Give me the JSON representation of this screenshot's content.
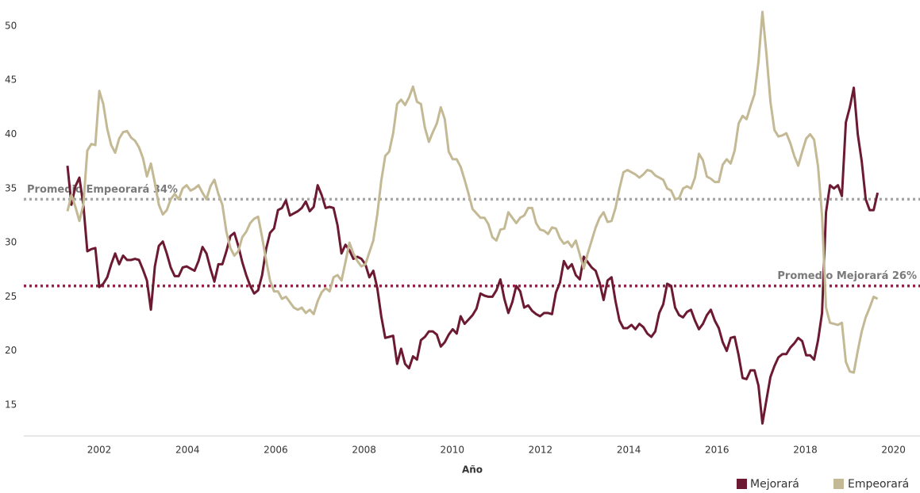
{
  "chart_data": {
    "type": "line",
    "x_label": "Año",
    "x": [
      2001.28,
      2001.37,
      2001.46,
      2001.55,
      2001.64,
      2001.73,
      2001.82,
      2001.91,
      2002.0,
      2002.09,
      2002.18,
      2002.27,
      2002.36,
      2002.45,
      2002.54,
      2002.63,
      2002.72,
      2002.81,
      2002.9,
      2002.99,
      2003.08,
      2003.17,
      2003.26,
      2003.35,
      2003.44,
      2003.53,
      2003.62,
      2003.71,
      2003.8,
      2003.89,
      2003.98,
      2004.07,
      2004.16,
      2004.25,
      2004.34,
      2004.43,
      2004.52,
      2004.61,
      2004.7,
      2004.79,
      2004.88,
      2004.97,
      2005.06,
      2005.15,
      2005.24,
      2005.33,
      2005.42,
      2005.51,
      2005.6,
      2005.69,
      2005.78,
      2005.87,
      2005.96,
      2006.05,
      2006.14,
      2006.23,
      2006.32,
      2006.41,
      2006.5,
      2006.59,
      2006.68,
      2006.77,
      2006.86,
      2006.95,
      2007.04,
      2007.13,
      2007.22,
      2007.31,
      2007.4,
      2007.49,
      2007.58,
      2007.67,
      2007.76,
      2007.85,
      2007.94,
      2008.03,
      2008.12,
      2008.21,
      2008.3,
      2008.39,
      2008.48,
      2008.57,
      2008.66,
      2008.75,
      2008.84,
      2008.93,
      2009.02,
      2009.11,
      2009.2,
      2009.29,
      2009.38,
      2009.47,
      2009.56,
      2009.65,
      2009.74,
      2009.83,
      2009.92,
      2010.01,
      2010.1,
      2010.19,
      2010.28,
      2010.37,
      2010.46,
      2010.55,
      2010.64,
      2010.73,
      2010.82,
      2010.91,
      2011.0,
      2011.09,
      2011.18,
      2011.27,
      2011.36,
      2011.45,
      2011.54,
      2011.63,
      2011.72,
      2011.81,
      2011.9,
      2011.99,
      2012.08,
      2012.17,
      2012.26,
      2012.35,
      2012.44,
      2012.53,
      2012.62,
      2012.71,
      2012.8,
      2012.89,
      2012.98,
      2013.07,
      2013.16,
      2013.25,
      2013.34,
      2013.43,
      2013.52,
      2013.61,
      2013.7,
      2013.79,
      2013.88,
      2013.97,
      2014.06,
      2014.15,
      2014.24,
      2014.33,
      2014.42,
      2014.51,
      2014.6,
      2014.69,
      2014.78,
      2014.87,
      2014.96,
      2015.05,
      2015.14,
      2015.23,
      2015.32,
      2015.41,
      2015.5,
      2015.59,
      2015.68,
      2015.77,
      2015.86,
      2015.95,
      2016.04,
      2016.13,
      2016.22,
      2016.31,
      2016.4,
      2016.49,
      2016.58,
      2016.67,
      2016.76,
      2016.85,
      2016.94,
      2017.03,
      2017.12,
      2017.21,
      2017.3,
      2017.39,
      2017.48,
      2017.57,
      2017.66,
      2017.75,
      2017.84,
      2017.93,
      2018.02,
      2018.11,
      2018.2,
      2018.29,
      2018.38,
      2018.47,
      2018.56,
      2018.65,
      2018.74,
      2018.83,
      2018.92,
      2019.01,
      2019.1,
      2019.19,
      2019.28,
      2019.37,
      2019.46,
      2019.55,
      2019.64
    ],
    "series": [
      {
        "name": "Mejorará",
        "color": "#6b1a32",
        "values": [
          37.1,
          33.5,
          35.2,
          36,
          33.5,
          29.2,
          29.4,
          29.5,
          25.9,
          26.2,
          26.8,
          28,
          29,
          28,
          28.8,
          28.4,
          28.4,
          28.5,
          28.4,
          27.5,
          26.5,
          23.8,
          27.8,
          29.7,
          30.1,
          29,
          27.7,
          26.9,
          26.9,
          27.7,
          27.8,
          27.6,
          27.4,
          28.3,
          29.6,
          29,
          27.6,
          26.4,
          28,
          28,
          29.2,
          30.6,
          30.9,
          29.7,
          28.2,
          27,
          26,
          25.3,
          25.6,
          27,
          29.4,
          30.9,
          31.3,
          33,
          33.2,
          33.9,
          32.5,
          32.7,
          32.9,
          33.2,
          33.8,
          32.9,
          33.3,
          35.3,
          34.4,
          33.2,
          33.3,
          33.2,
          31.6,
          29,
          29.8,
          29.3,
          28.5,
          28.7,
          28.5,
          28,
          26.8,
          27.4,
          25.8,
          23.2,
          21.2,
          21.3,
          21.4,
          18.8,
          20.2,
          18.8,
          18.4,
          19.5,
          19.2,
          21,
          21.3,
          21.8,
          21.8,
          21.5,
          20.4,
          20.8,
          21.5,
          22,
          21.6,
          23.2,
          22.5,
          22.9,
          23.3,
          23.9,
          25.3,
          25.1,
          25,
          25,
          25.6,
          26.6,
          24.8,
          23.5,
          24.5,
          26,
          25.5,
          24,
          24.2,
          23.7,
          23.4,
          23.2,
          23.5,
          23.5,
          23.4,
          25.4,
          26.3,
          28.3,
          27.6,
          28,
          27,
          26.6,
          28.7,
          28.2,
          27.7,
          27.4,
          26.3,
          24.7,
          26.5,
          26.8,
          24.6,
          22.8,
          22.1,
          22.1,
          22.4,
          22,
          22.5,
          22.2,
          21.6,
          21.3,
          21.8,
          23.5,
          24.3,
          26.2,
          26,
          24,
          23.3,
          23.1,
          23.6,
          23.8,
          22.8,
          22,
          22.5,
          23.3,
          23.8,
          22.8,
          22.1,
          20.8,
          20,
          21.2,
          21.3,
          19.6,
          17.5,
          17.4,
          18.2,
          18.2,
          16.8,
          13.3,
          15.5,
          17.6,
          18.6,
          19.4,
          19.7,
          19.7,
          20.3,
          20.7,
          21.2,
          20.9,
          19.6,
          19.6,
          19.2,
          21,
          23.5,
          32.8,
          35.3,
          35,
          35.3,
          34.3,
          41.1,
          42.5,
          44.3,
          40,
          37.5,
          34,
          33,
          33,
          34.6
        ]
      },
      {
        "name": "Empeorará",
        "color": "#c4b995",
        "values": [
          32.9,
          34.4,
          33.3,
          32,
          33.5,
          38.5,
          39.1,
          39,
          44,
          42.8,
          40.5,
          39,
          38.3,
          39.6,
          40.2,
          40.3,
          39.7,
          39.4,
          38.8,
          37.8,
          36.1,
          37.3,
          35.5,
          33.5,
          32.6,
          33,
          34,
          34.5,
          34,
          35,
          35.3,
          34.8,
          35,
          35.3,
          34.6,
          34,
          35.2,
          35.8,
          34.5,
          33.5,
          31,
          29.5,
          28.8,
          29.2,
          30.5,
          31,
          31.8,
          32.2,
          32.4,
          30.5,
          28.4,
          26.5,
          25.5,
          25.5,
          24.8,
          25,
          24.5,
          24,
          23.8,
          24,
          23.5,
          23.8,
          23.4,
          24.6,
          25.4,
          25.8,
          25.5,
          26.8,
          27,
          26.5,
          28.2,
          30,
          29,
          28.3,
          27.8,
          28,
          29.1,
          30.2,
          32.6,
          35.7,
          38,
          38.4,
          40.1,
          42.8,
          43.2,
          42.7,
          43.4,
          44.4,
          43,
          42.8,
          40.6,
          39.3,
          40.2,
          41,
          42.5,
          41.4,
          38.4,
          37.7,
          37.7,
          37,
          35.8,
          34.5,
          33.1,
          32.7,
          32.3,
          32.3,
          31.7,
          30.5,
          30.2,
          31.2,
          31.3,
          32.8,
          32.3,
          31.8,
          32.3,
          32.5,
          33.2,
          33.2,
          31.8,
          31.2,
          31.1,
          30.8,
          31.4,
          31.3,
          30.4,
          29.9,
          30.1,
          29.6,
          30.2,
          28.9,
          27.6,
          29,
          30.2,
          31.4,
          32.3,
          32.8,
          31.9,
          32,
          33.2,
          35,
          36.5,
          36.7,
          36.5,
          36.3,
          36,
          36.3,
          36.7,
          36.6,
          36.2,
          36,
          35.8,
          35,
          34.8,
          34,
          34.1,
          35,
          35.2,
          35,
          36,
          38.2,
          37.6,
          36.1,
          35.9,
          35.6,
          35.6,
          37.2,
          37.7,
          37.3,
          38.5,
          41,
          41.7,
          41.4,
          42.6,
          43.7,
          46.7,
          51.3,
          47.4,
          43,
          40.4,
          39.8,
          39.9,
          40.1,
          39.2,
          38,
          37.1,
          38.4,
          39.6,
          40,
          39.5,
          37,
          32.5,
          24,
          22.6,
          22.5,
          22.4,
          22.6,
          19,
          18.1,
          18,
          20,
          21.8,
          23.1,
          24,
          25,
          24.8
        ]
      }
    ],
    "annotations": [
      {
        "label": "Promedio Empeorará 34%",
        "value": 34,
        "color": "#a6a6a6"
      },
      {
        "label": "Promedio Mejorará 26%",
        "value": 26,
        "color": "#9b2247"
      }
    ],
    "xlim": [
      2000.29,
      2020.6
    ],
    "ylim": [
      12.15,
      52.4
    ],
    "xticks": [
      2002,
      2004,
      2006,
      2008,
      2010,
      2012,
      2014,
      2016,
      2018,
      2020
    ],
    "yticks": [
      15,
      20,
      25,
      30,
      35,
      40,
      45,
      50
    ],
    "grid": false,
    "legend": "bottom-right"
  }
}
